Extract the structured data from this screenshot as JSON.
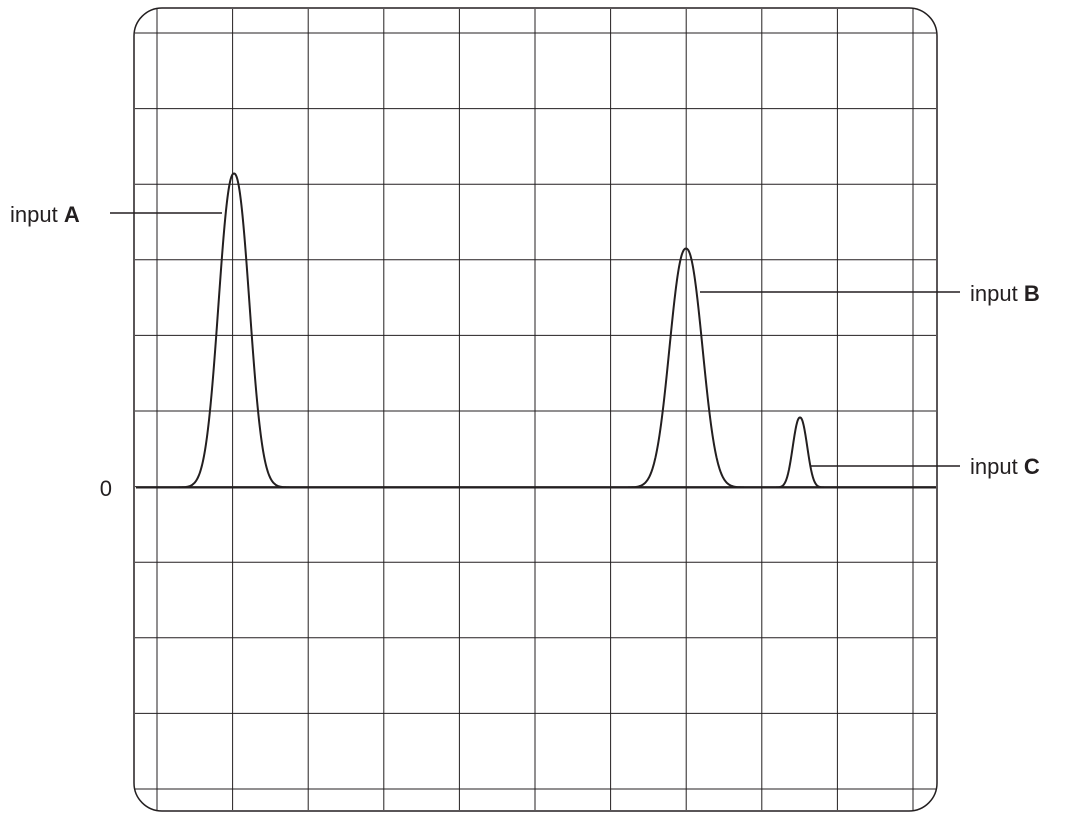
{
  "zero_label": "0",
  "inputs": [
    {
      "prefix": "input",
      "letter": "A"
    },
    {
      "prefix": "input",
      "letter": "B"
    },
    {
      "prefix": "input",
      "letter": "C"
    }
  ]
}
